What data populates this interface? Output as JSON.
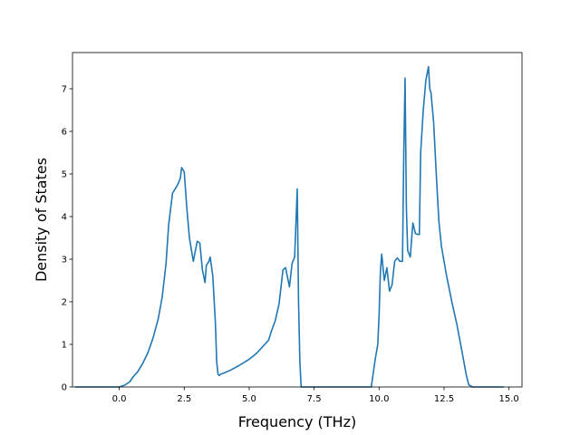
{
  "chart_data": {
    "type": "line",
    "title": "",
    "xlabel": "Frequency (THz)",
    "ylabel": "Density of States",
    "xlim": [
      -1.8,
      15.5
    ],
    "ylim": [
      0,
      7.85
    ],
    "xticks": [
      0.0,
      2.5,
      5.0,
      7.5,
      10.0,
      12.5,
      15.0
    ],
    "xtick_labels": [
      "0.0",
      "2.5",
      "5.0",
      "7.5",
      "10.0",
      "12.5",
      "15.0"
    ],
    "yticks": [
      0,
      1,
      2,
      3,
      4,
      5,
      6,
      7
    ],
    "ytick_labels": [
      "0",
      "1",
      "2",
      "3",
      "4",
      "5",
      "6",
      "7"
    ],
    "grid": false,
    "color": "#1f77b4",
    "x": [
      -1.7,
      -1.0,
      -0.5,
      0.0,
      0.2,
      0.4,
      0.55,
      0.7,
      0.9,
      1.1,
      1.3,
      1.5,
      1.65,
      1.8,
      1.9,
      2.0,
      2.05,
      2.15,
      2.25,
      2.35,
      2.4,
      2.5,
      2.6,
      2.7,
      2.85,
      3.0,
      3.1,
      3.2,
      3.3,
      3.35,
      3.45,
      3.5,
      3.6,
      3.7,
      3.75,
      3.8,
      3.85,
      3.9,
      4.0,
      4.3,
      4.6,
      5.0,
      5.3,
      5.6,
      5.75,
      5.85,
      6.0,
      6.15,
      6.3,
      6.4,
      6.55,
      6.65,
      6.75,
      6.85,
      6.9,
      6.95,
      7.0,
      7.5,
      8.5,
      9.7,
      9.85,
      9.95,
      10.0,
      10.05,
      10.1,
      10.2,
      10.3,
      10.4,
      10.5,
      10.6,
      10.7,
      10.8,
      10.9,
      10.95,
      11.0,
      11.05,
      11.1,
      11.2,
      11.3,
      11.4,
      11.5,
      11.55,
      11.6,
      11.7,
      11.8,
      11.9,
      11.95,
      12.0,
      12.1,
      12.2,
      12.3,
      12.4,
      12.5,
      12.6,
      12.7,
      12.8,
      13.0,
      13.2,
      13.35,
      13.45,
      13.6,
      14.8
    ],
    "y": [
      0.0,
      0.0,
      0.0,
      0.0,
      0.04,
      0.12,
      0.25,
      0.35,
      0.55,
      0.8,
      1.15,
      1.6,
      2.1,
      2.9,
      3.8,
      4.3,
      4.55,
      4.65,
      4.75,
      4.9,
      5.15,
      5.05,
      4.2,
      3.5,
      2.95,
      3.42,
      3.38,
      2.75,
      2.45,
      2.85,
      2.95,
      3.05,
      2.6,
      1.5,
      0.6,
      0.3,
      0.27,
      0.3,
      0.32,
      0.4,
      0.5,
      0.65,
      0.8,
      1.0,
      1.1,
      1.3,
      1.55,
      1.95,
      2.75,
      2.8,
      2.35,
      2.9,
      3.05,
      4.65,
      2.0,
      0.6,
      0.0,
      0.0,
      0.0,
      0.0,
      0.65,
      1.0,
      1.7,
      2.7,
      3.12,
      2.5,
      2.8,
      2.25,
      2.4,
      2.95,
      3.03,
      2.95,
      2.95,
      5.5,
      7.25,
      4.2,
      3.2,
      3.05,
      3.85,
      3.6,
      3.58,
      3.58,
      5.5,
      6.5,
      7.2,
      7.52,
      7.0,
      6.9,
      6.2,
      5.0,
      3.9,
      3.3,
      2.95,
      2.6,
      2.3,
      2.0,
      1.45,
      0.8,
      0.3,
      0.05,
      0.0,
      0.0
    ]
  }
}
